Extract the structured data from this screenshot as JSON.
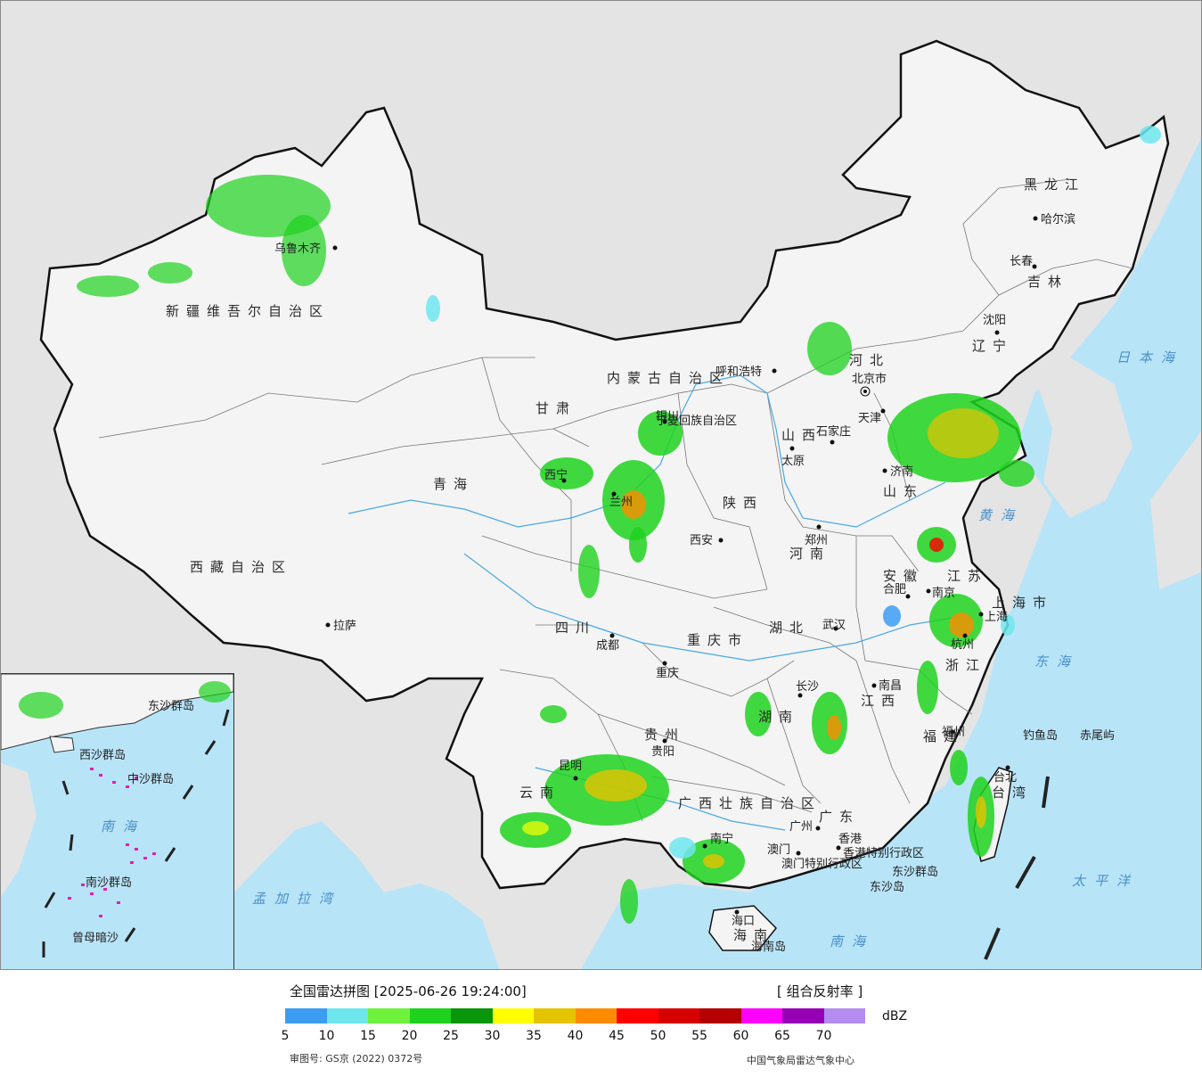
{
  "map": {
    "provinces": [
      {
        "name": "新疆维吾尔自治区"
      },
      {
        "name": "西藏自治区"
      },
      {
        "name": "青海"
      },
      {
        "name": "甘肃"
      },
      {
        "name": "内蒙古自治区"
      },
      {
        "name": "黑龙江"
      },
      {
        "name": "吉林"
      },
      {
        "name": "辽宁"
      },
      {
        "name": "河北"
      },
      {
        "name": "山西"
      },
      {
        "name": "陕西"
      },
      {
        "name": "河南"
      },
      {
        "name": "山东"
      },
      {
        "name": "江苏"
      },
      {
        "name": "安徽"
      },
      {
        "name": "浙江"
      },
      {
        "name": "湖北"
      },
      {
        "name": "湖南"
      },
      {
        "name": "江西"
      },
      {
        "name": "福建"
      },
      {
        "name": "四川"
      },
      {
        "name": "重庆市"
      },
      {
        "name": "贵州"
      },
      {
        "name": "云南"
      },
      {
        "name": "广西壮族自治区"
      },
      {
        "name": "广东"
      },
      {
        "name": "海南"
      },
      {
        "name": "台湾"
      },
      {
        "name": "上海市"
      },
      {
        "name": "宁夏回族自治区"
      },
      {
        "name": "香港特别行政区"
      },
      {
        "name": "澳门特别行政区"
      }
    ],
    "cities": [
      "乌鲁木齐",
      "拉萨",
      "西宁",
      "兰州",
      "银川",
      "呼和浩特",
      "北京市",
      "天津",
      "石家庄",
      "太原",
      "西安",
      "郑州",
      "济南",
      "南京",
      "合肥",
      "上海",
      "杭州",
      "武汉",
      "长沙",
      "南昌",
      "福州",
      "台北",
      "成都",
      "重庆",
      "贵阳",
      "昆明",
      "南宁",
      "广州",
      "香港",
      "澳门",
      "海口",
      "哈尔滨",
      "长春",
      "沈阳"
    ],
    "seas": [
      "日本海",
      "黄海",
      "东海",
      "太平洋",
      "南海",
      "孟加拉湾"
    ],
    "islands": [
      "钓鱼岛",
      "赤尾屿",
      "东沙群岛",
      "东沙岛",
      "海南岛"
    ],
    "inset": {
      "labels": [
        "东沙群岛",
        "西沙群岛",
        "中沙群岛",
        "南沙群岛",
        "南海",
        "曾母暗沙"
      ]
    }
  },
  "legend": {
    "title": "全国雷达拼图 [2025-06-26 19:24:00]",
    "product": "[ 组合反射率 ]",
    "unit": "dBZ",
    "ticks": [
      "5",
      "10",
      "15",
      "20",
      "25",
      "30",
      "35",
      "40",
      "45",
      "50",
      "55",
      "60",
      "65",
      "70"
    ],
    "colors": [
      "#3b9cf2",
      "#6ee6ee",
      "#6ef23c",
      "#1ed21e",
      "#0a960a",
      "#ffff00",
      "#e6c300",
      "#ff8c00",
      "#ff0000",
      "#d70000",
      "#b40000",
      "#ff00ff",
      "#9600b4",
      "#b48cf0"
    ],
    "approval_no": "审图号: GS京 (2022) 0372号",
    "organization": "中国气象局雷达气象中心"
  }
}
